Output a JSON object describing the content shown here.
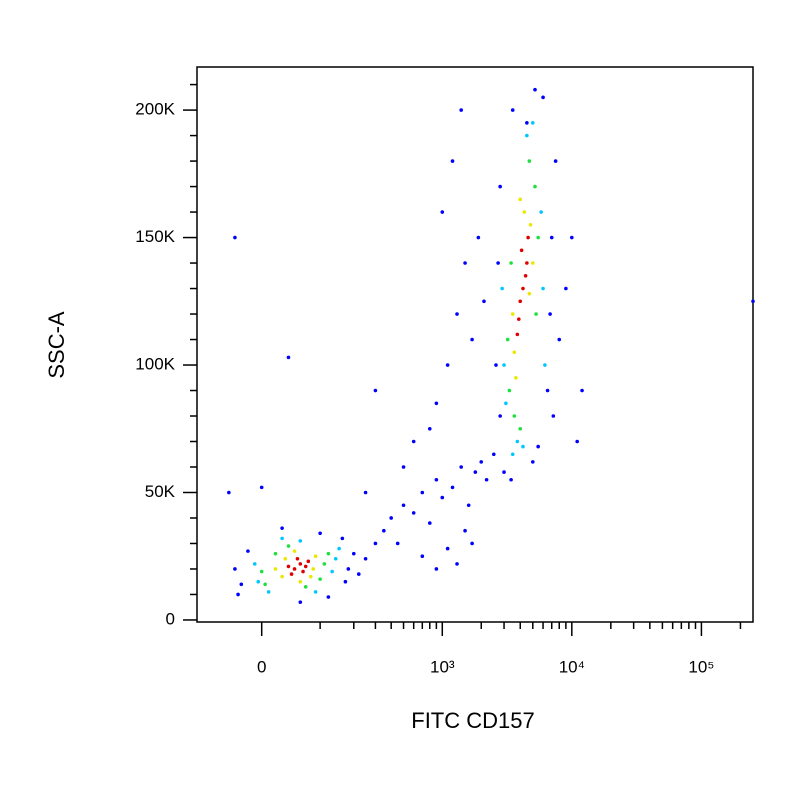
{
  "chart_data": {
    "type": "scatter",
    "x_label": "FITC CD157",
    "y_label": "SSC-A",
    "xscale": "asinh",
    "xlim": [
      -115,
      250000
    ],
    "xticks": [
      0,
      {
        "value": 1000,
        "label": "10³"
      },
      {
        "value": 10000,
        "label": "10⁴"
      },
      {
        "value": 100000,
        "label": "10⁵"
      }
    ],
    "xminor_ticks": [
      100,
      200,
      300,
      400,
      500,
      600,
      700,
      800,
      900,
      2000,
      3000,
      4000,
      5000,
      6000,
      7000,
      8000,
      9000,
      20000,
      30000,
      40000,
      50000,
      60000,
      70000,
      80000,
      90000,
      200000
    ],
    "ylim": [
      -800,
      216900
    ],
    "yticks": [
      0,
      {
        "value": 50000,
        "label": "50K"
      },
      {
        "value": 100000,
        "label": "100K"
      },
      {
        "value": 150000,
        "label": "150K"
      },
      {
        "value": 200000,
        "label": "200K"
      }
    ],
    "yminor_ticks": [
      10000,
      20000,
      30000,
      40000,
      60000,
      70000,
      80000,
      90000,
      110000,
      120000,
      130000,
      140000,
      160000,
      170000,
      180000,
      190000,
      210000
    ],
    "series": [
      {
        "color": "#0000ff",
        "x": [
          -40,
          -30,
          180,
          200,
          170,
          -20,
          100,
          30,
          160,
          250,
          300,
          -35,
          120,
          60,
          220,
          350,
          400,
          450,
          500,
          600,
          700,
          800,
          900,
          1000,
          1200,
          1400,
          1600,
          1800,
          2000,
          2200,
          2500,
          700,
          900,
          1100,
          1300,
          1500,
          1700,
          600,
          900,
          1100,
          1300,
          1500,
          1000,
          800,
          500,
          300,
          1700,
          1900,
          2100,
          1200,
          1400,
          250,
          -50,
          0,
          40,
          -40,
          2600,
          2700,
          2800,
          6800,
          7000,
          7500,
          6500,
          2800,
          3500,
          6000,
          7200,
          8000,
          9000,
          10000,
          12000,
          11000,
          3000,
          3400,
          5000,
          5500,
          4500,
          5200,
          250000
        ],
        "y": [
          20000,
          14000,
          20000,
          26000,
          15000,
          27000,
          34000,
          36000,
          32000,
          24000,
          30000,
          10000,
          9000,
          7000,
          18000,
          35000,
          40000,
          30000,
          45000,
          42000,
          50000,
          38000,
          55000,
          48000,
          52000,
          60000,
          45000,
          58000,
          62000,
          55000,
          65000,
          25000,
          20000,
          28000,
          22000,
          35000,
          30000,
          70000,
          85000,
          100000,
          120000,
          140000,
          160000,
          75000,
          60000,
          90000,
          110000,
          150000,
          125000,
          180000,
          200000,
          50000,
          50000,
          52000,
          103000,
          150000,
          100000,
          140000,
          80000,
          120000,
          150000,
          180000,
          90000,
          170000,
          200000,
          205000,
          80000,
          110000,
          130000,
          150000,
          90000,
          70000,
          58000,
          55000,
          62000,
          68000,
          195000,
          208000,
          125000
        ]
      },
      {
        "color": "#00c8ff",
        "x": [
          -10,
          130,
          -5,
          140,
          30,
          90,
          60,
          150,
          10,
          3000,
          5800,
          3800,
          4500,
          2900,
          6000,
          3500,
          5000,
          3100,
          6200,
          4200
        ],
        "y": [
          22000,
          19000,
          15000,
          24000,
          32000,
          11000,
          31000,
          28000,
          11000,
          100000,
          160000,
          70000,
          190000,
          130000,
          130000,
          65000,
          195000,
          85000,
          100000,
          68000
        ]
      },
      {
        "color": "#20e040",
        "x": [
          0,
          110,
          20,
          100,
          40,
          70,
          5,
          120,
          3300,
          5200,
          3400,
          5500,
          3600,
          4700,
          3200,
          5300,
          4000
        ],
        "y": [
          19000,
          22000,
          26000,
          16000,
          29000,
          13000,
          14000,
          26000,
          90000,
          170000,
          140000,
          150000,
          80000,
          180000,
          110000,
          120000,
          75000
        ]
      },
      {
        "color": "#e8e800",
        "x": [
          30,
          85,
          50,
          35,
          90,
          60,
          20,
          80,
          3600,
          4800,
          3500,
          5000,
          4300,
          3700,
          4700,
          4000
        ],
        "y": [
          17000,
          20000,
          27000,
          24000,
          25000,
          15000,
          20000,
          17000,
          105000,
          155000,
          120000,
          140000,
          160000,
          95000,
          128000,
          165000
        ]
      },
      {
        "color": "#e00000",
        "x": [
          50,
          60,
          45,
          70,
          55,
          65,
          40,
          75,
          4200,
          4000,
          4500,
          3900,
          4400,
          4100,
          3800,
          4600
        ],
        "y": [
          20000,
          22000,
          18000,
          21000,
          24000,
          19000,
          21000,
          23000,
          130000,
          125000,
          140000,
          118000,
          135000,
          145000,
          112000,
          150000
        ]
      }
    ]
  }
}
